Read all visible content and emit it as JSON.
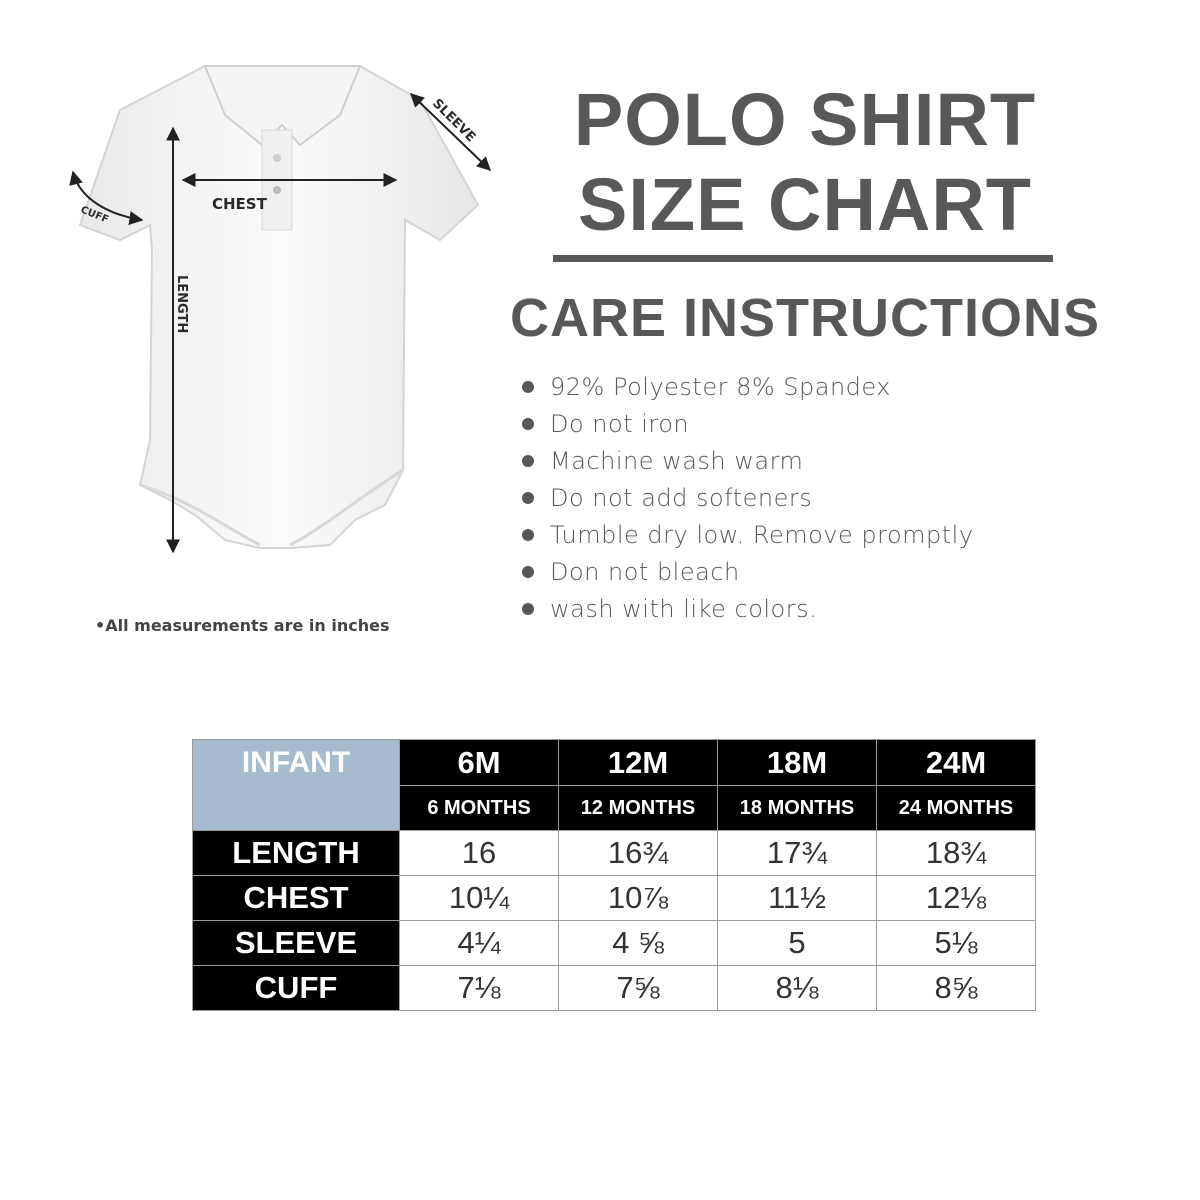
{
  "title_line1": "POLO SHIRT",
  "title_line2": "SIZE CHART",
  "care_title": "CARE INSTRUCTIONS",
  "care_items": [
    "92% Polyester 8% Spandex",
    "Do not iron",
    "Machine wash warm",
    "Do not add softeners",
    "Tumble dry low. Remove promptly",
    "Don not bleach",
    "wash with like colors."
  ],
  "diagram": {
    "chest": "CHEST",
    "sleeve": "SLEEVE",
    "cuff": "CUFF",
    "length": "LENGTH"
  },
  "note": "•All measurements are in inches",
  "colors": {
    "header_blue": "#a7bbcf",
    "heading_gray": "#58585a",
    "header_black": "#000000"
  },
  "table": {
    "corner": "INFANT",
    "sizes": [
      "6M",
      "12M",
      "18M",
      "24M"
    ],
    "size_names": [
      "6 MONTHS",
      "12 MONTHS",
      "18 MONTHS",
      "24 MONTHS"
    ],
    "rows": [
      {
        "label": "LENGTH",
        "values": [
          "16",
          "16¾",
          "17¾",
          "18¾"
        ]
      },
      {
        "label": "CHEST",
        "values": [
          "10¼",
          "10⅞",
          "11½",
          "12⅛"
        ]
      },
      {
        "label": "SLEEVE",
        "values": [
          "4¼",
          "4 ⅝",
          "5",
          "5⅛"
        ]
      },
      {
        "label": "CUFF",
        "values": [
          "7⅛",
          "7⅝",
          "8⅛",
          "8⅝"
        ]
      }
    ]
  }
}
